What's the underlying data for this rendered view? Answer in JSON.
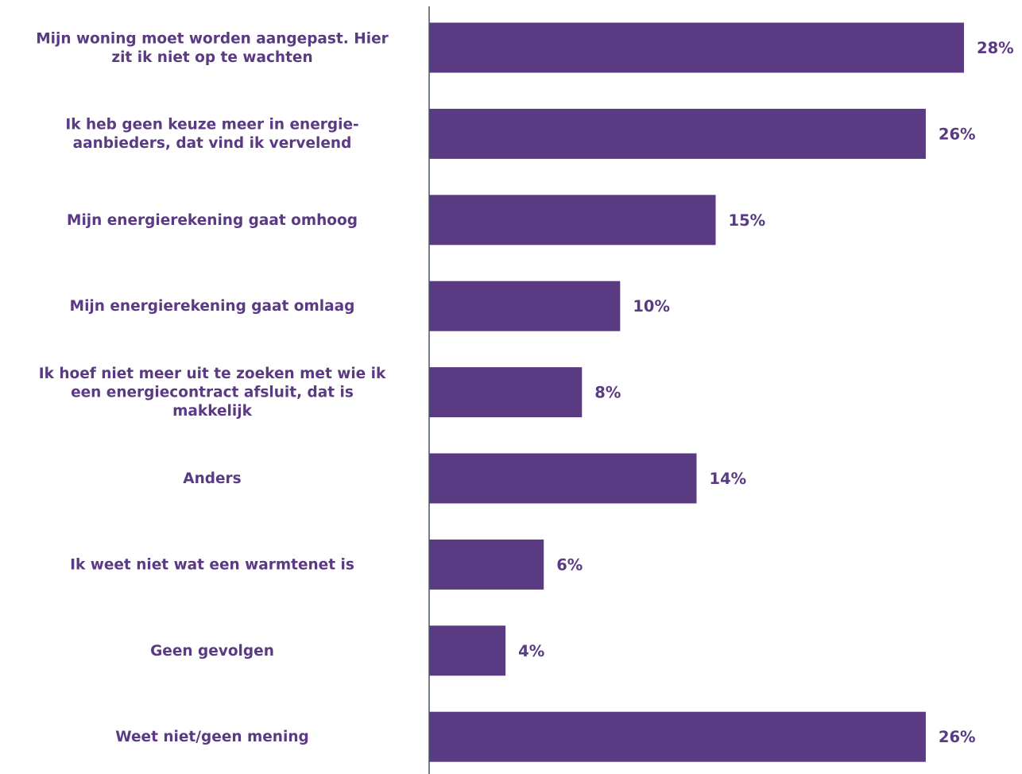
{
  "chart_data": {
    "type": "bar",
    "orientation": "horizontal",
    "categories": [
      [
        "Mijn woning moet worden aangepast. Hier",
        "zit ik niet op te wachten"
      ],
      [
        "Ik heb geen keuze meer in energie-",
        "aanbieders, dat vind ik vervelend"
      ],
      [
        "Mijn energierekening gaat omhoog"
      ],
      [
        "Mijn energierekening gaat omlaag"
      ],
      [
        "Ik hoef niet meer uit te zoeken met wie ik",
        "een energiecontract afsluit, dat is",
        "makkelijk"
      ],
      [
        "Anders"
      ],
      [
        "Ik weet niet wat een warmtenet is"
      ],
      [
        "Geen gevolgen"
      ],
      [
        "Weet niet/geen mening"
      ]
    ],
    "values": [
      28,
      26,
      15,
      10,
      8,
      14,
      6,
      4,
      26
    ],
    "value_labels": [
      "28%",
      "26%",
      "15%",
      "10%",
      "8%",
      "14%",
      "6%",
      "4%",
      "26%"
    ],
    "unit": "%",
    "title": "",
    "xlabel": "",
    "ylabel": "",
    "xlim": [
      0,
      28
    ],
    "grid": false,
    "legend": "none",
    "colors": {
      "bar": "#5b3a84",
      "text": "#5b3a84",
      "axis": "#44546a"
    }
  }
}
